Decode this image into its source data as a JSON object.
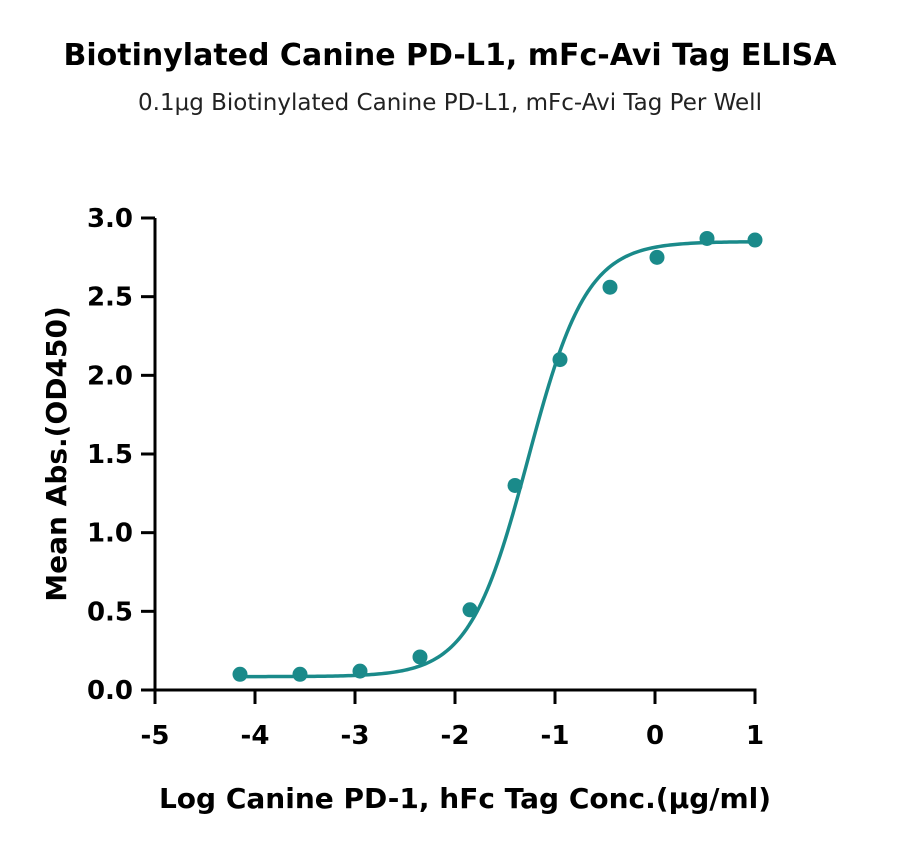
{
  "chart_data": {
    "type": "scatter",
    "title": "Biotinylated Canine PD-L1, mFc-Avi Tag ELISA",
    "subtitle": "0.1μg Biotinylated Canine PD-L1, mFc-Avi Tag Per Well",
    "xlabel": "Log Canine PD-1, hFc Tag Conc.(μg/ml)",
    "ylabel": "Mean Abs.(OD450)",
    "xlim": [
      -5,
      1
    ],
    "ylim": [
      0,
      3
    ],
    "x_ticks": [
      "-5",
      "-4",
      "-3",
      "-2",
      "-1",
      "0",
      "1"
    ],
    "y_ticks": [
      "0.0",
      "0.5",
      "1.0",
      "1.5",
      "2.0",
      "2.5",
      "3.0"
    ],
    "grid": false,
    "color": "#1a8a8a",
    "series": [
      {
        "points": [
          {
            "x": -4.15,
            "y": 0.1
          },
          {
            "x": -3.55,
            "y": 0.1
          },
          {
            "x": -2.95,
            "y": 0.12
          },
          {
            "x": -2.35,
            "y": 0.21
          },
          {
            "x": -1.85,
            "y": 0.51
          },
          {
            "x": -1.4,
            "y": 1.3
          },
          {
            "x": -0.95,
            "y": 2.1
          },
          {
            "x": -0.45,
            "y": 2.56
          },
          {
            "x": 0.02,
            "y": 2.75
          },
          {
            "x": 0.52,
            "y": 2.87
          },
          {
            "x": 1.0,
            "y": 2.86
          }
        ],
        "fit": {
          "model": "4PL",
          "bottom": 0.085,
          "top": 2.85,
          "logEC50": -1.27,
          "hill": 1.48
        }
      }
    ]
  }
}
